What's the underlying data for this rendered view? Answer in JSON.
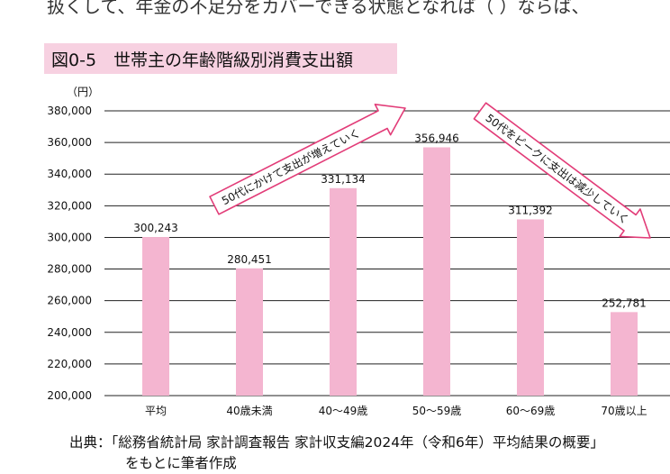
{
  "page": {
    "top_text": "扱くして、年金の不足分をカバーできる状態となれば（ ）ならば、",
    "figure_title": "図0-5　世帯主の年齢階級別消費支出額",
    "source_line1": "出典：「総務省統計局 家計調査報告 家計収支編2024年（令和6年）平均結果の概要」",
    "source_line2": "をもとに筆者作成"
  },
  "chart_data": {
    "type": "bar",
    "title": "",
    "xlabel": "",
    "ylabel": "（円）",
    "categories": [
      "平均",
      "40歳未満",
      "40～49歳",
      "50～59歳",
      "60～69歳",
      "70歳以上"
    ],
    "values": [
      300243,
      280451,
      331134,
      356946,
      311392,
      252781
    ],
    "value_labels": [
      "300,243",
      "280,451",
      "331,134",
      "356,946",
      "311,392",
      "252,781"
    ],
    "ylim": [
      200000,
      380000
    ],
    "yticks": [
      200000,
      220000,
      240000,
      260000,
      280000,
      300000,
      320000,
      340000,
      360000,
      380000
    ],
    "ytick_labels": [
      "200,000",
      "220,000",
      "240,000",
      "260,000",
      "280,000",
      "300,000",
      "320,000",
      "340,000",
      "360,000",
      "380,000"
    ],
    "grid": true,
    "annotations": [
      "50代にかけて支出が増えていく",
      "50代をピークに支出は減少していく"
    ],
    "colors": {
      "bar": "#f4b5d0",
      "arrow_fill": "#ffffff",
      "arrow_stroke": "#e23c78",
      "grid": "#222222"
    }
  }
}
